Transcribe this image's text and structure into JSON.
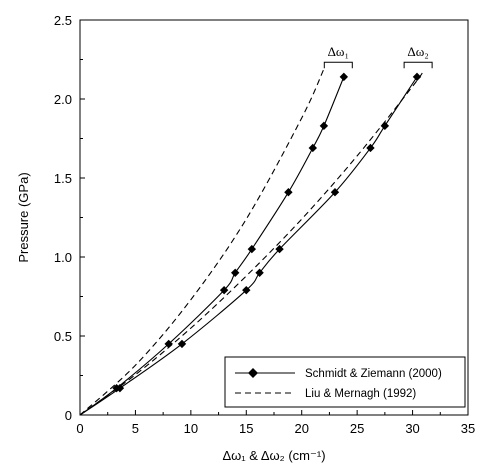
{
  "chart_data": {
    "type": "line",
    "xlabel": "Δω₁ & Δω₂ (cm⁻¹)",
    "ylabel": "Pressure (GPa)",
    "xlim": [
      0,
      35
    ],
    "ylim": [
      0,
      2.5
    ],
    "xticks": [
      "0",
      "5",
      "10",
      "15",
      "20",
      "25",
      "30",
      "35"
    ],
    "yticks": [
      "0",
      "0.5",
      "1.0",
      "1.5",
      "2.0",
      "2.5"
    ],
    "grid": false,
    "legend_position": "bottom-right",
    "legend": [
      {
        "label": "Schmidt & Ziemann (2000)",
        "style": "solid-diamond"
      },
      {
        "label": "Liu & Mernagh (1992)",
        "style": "dashed"
      }
    ],
    "annotations": [
      {
        "text": "Δω₁",
        "x": 23.3,
        "y": 2.22
      },
      {
        "text": "Δω₂",
        "x": 30.5,
        "y": 2.22
      }
    ],
    "series": [
      {
        "name": "Schmidt & Ziemann (2000)",
        "band": "Δω₁",
        "style": "solid-diamond",
        "x": [
          0,
          3.3,
          8.0,
          13.0,
          14.0,
          15.5,
          18.8,
          21.0,
          22.0,
          23.8
        ],
        "y": [
          0,
          0.17,
          0.45,
          0.79,
          0.9,
          1.05,
          1.41,
          1.69,
          1.83,
          2.14
        ]
      },
      {
        "name": "Schmidt & Ziemann (2000)",
        "band": "Δω₂",
        "style": "solid-diamond",
        "x": [
          0,
          3.6,
          9.2,
          15.0,
          16.2,
          18.0,
          23.0,
          26.2,
          27.5,
          30.4
        ],
        "y": [
          0,
          0.17,
          0.45,
          0.79,
          0.9,
          1.05,
          1.41,
          1.69,
          1.83,
          2.14
        ]
      },
      {
        "name": "Liu & Mernagh (1992)",
        "band": "Δω₁",
        "style": "dashed",
        "x": [
          0,
          5,
          10,
          15,
          20,
          22
        ],
        "y": [
          0,
          0.315,
          0.73,
          1.24,
          1.88,
          2.19
        ]
      },
      {
        "name": "Liu & Mernagh (1992)",
        "band": "Δω₂",
        "style": "dashed",
        "x": [
          0,
          5,
          10,
          15,
          20,
          25,
          30,
          31
        ],
        "y": [
          0,
          0.255,
          0.55,
          0.88,
          1.24,
          1.64,
          2.08,
          2.18
        ]
      }
    ]
  }
}
